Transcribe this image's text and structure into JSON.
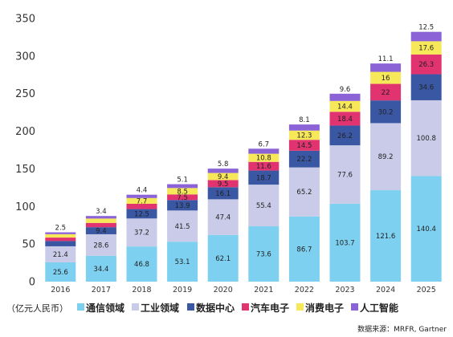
{
  "chart_data": {
    "type": "bar",
    "stacked": true,
    "categories": [
      "2016",
      "2017",
      "2018",
      "2019",
      "2020",
      "2021",
      "2022",
      "2023",
      "2024",
      "2025"
    ],
    "ylim": [
      0,
      350
    ],
    "yticks": [
      0,
      50,
      100,
      150,
      200,
      250,
      300,
      350
    ],
    "grid": false,
    "legend_placement": "bottom",
    "unit_label": "（亿元人民币）",
    "source": "数据来源：MRFR, Gartner",
    "series": [
      {
        "name": "通信领域",
        "color": "#7dd0f0",
        "values": [
          25.6,
          34.4,
          46.8,
          53.1,
          62.1,
          73.6,
          86.7,
          103.7,
          121.6,
          140.4
        ]
      },
      {
        "name": "工业领域",
        "color": "#c9cbe8",
        "values": [
          21.4,
          28.6,
          37.2,
          41.5,
          47.4,
          55.4,
          65.2,
          77.6,
          89.2,
          100.8
        ]
      },
      {
        "name": "数据中心",
        "color": "#3a57a3",
        "values": [
          7,
          9.4,
          12.5,
          13.9,
          16.1,
          18.7,
          22.2,
          26.2,
          30.2,
          34.6
        ]
      },
      {
        "name": "汽车电子",
        "color": "#e0336f",
        "values": [
          4.6,
          5.7,
          7,
          7.5,
          9.5,
          11.6,
          14.5,
          18.4,
          22,
          26.3
        ]
      },
      {
        "name": "消费电子",
        "color": "#f7e85a",
        "values": [
          4.5,
          5.8,
          7.7,
          8.5,
          9.4,
          10.8,
          12.3,
          14.4,
          16,
          17.6
        ]
      },
      {
        "name": "人工智能",
        "color": "#8b63d6",
        "values": [
          2.5,
          3.4,
          4.4,
          5.1,
          5.8,
          6.7,
          8.1,
          9.6,
          11.1,
          12.5
        ]
      }
    ]
  }
}
